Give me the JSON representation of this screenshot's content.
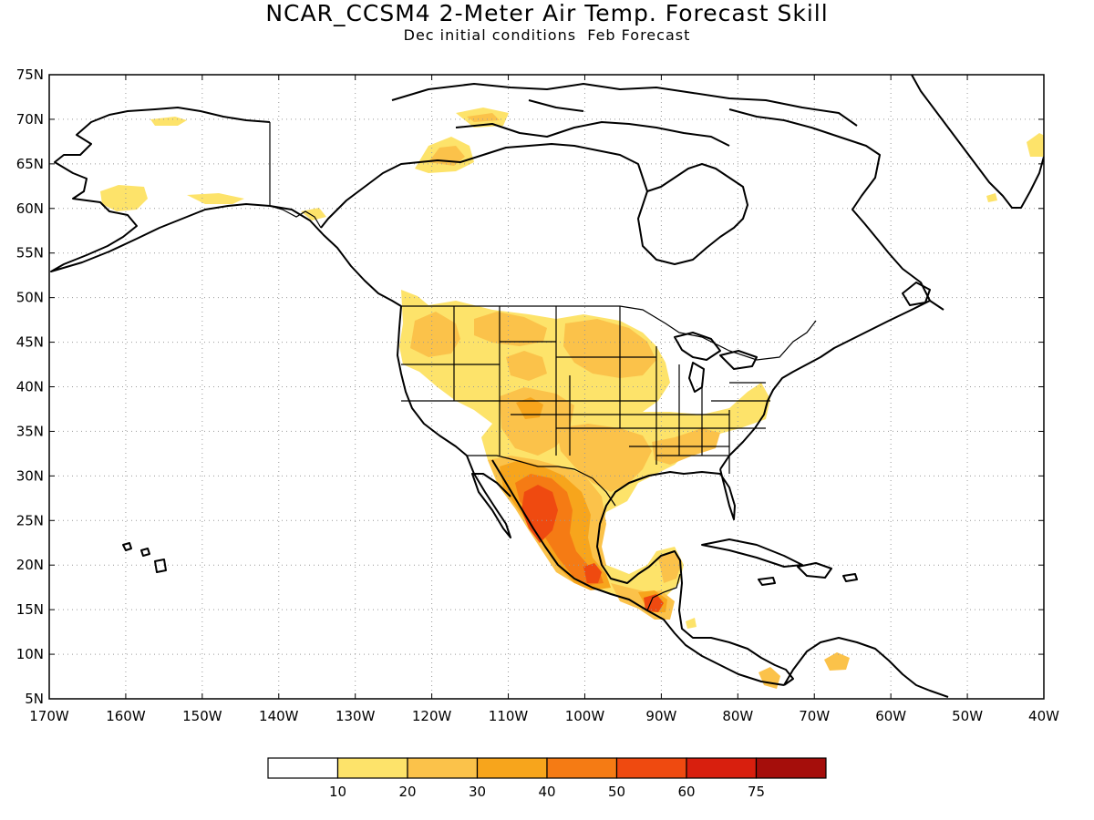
{
  "title": "NCAR_CCSM4 2-Meter Air Temp. Forecast Skill",
  "subtitle": "Dec initial conditions  Feb Forecast",
  "map": {
    "lon_range": [
      -170,
      -40
    ],
    "lat_range": [
      5,
      75
    ],
    "lat_labels": [
      "75N",
      "70N",
      "65N",
      "60N",
      "55N",
      "50N",
      "45N",
      "40N",
      "35N",
      "30N",
      "25N",
      "20N",
      "15N",
      "10N",
      "5N"
    ],
    "lon_labels": [
      "170W",
      "160W",
      "150W",
      "140W",
      "130W",
      "120W",
      "110W",
      "100W",
      "90W",
      "80W",
      "70W",
      "60W",
      "50W",
      "40W"
    ],
    "background_color": "#ffffff",
    "gridlines": "dotted"
  },
  "colorbar": {
    "labels": [
      "10",
      "20",
      "30",
      "40",
      "50",
      "60",
      "75"
    ],
    "colors": [
      "#ffffff",
      "#fde36a",
      "#fbc24a",
      "#f7a51c",
      "#f57b14",
      "#ef4a10",
      "#d81f0e",
      "#a50e0b"
    ]
  },
  "skill_shading": {
    "colors": {
      "10-20": "#fde36a",
      "20-30": "#fbc24a",
      "30-40": "#f7a51c",
      "40-50": "#f57b14",
      "50-60": "#ef4a10"
    }
  }
}
